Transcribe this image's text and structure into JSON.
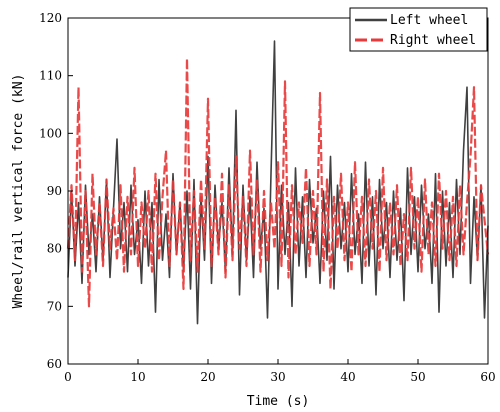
{
  "chart_data": {
    "type": "line",
    "xlabel": "Time (s)",
    "ylabel": "Wheel/rail vertical force (kN)",
    "xlim": [
      0,
      60
    ],
    "ylim": [
      60,
      120
    ],
    "xticks": [
      0,
      10,
      20,
      30,
      40,
      50,
      60
    ],
    "yticks": [
      60,
      70,
      80,
      90,
      100,
      110,
      120
    ],
    "grid": false,
    "legend_position": "top-right",
    "series": [
      {
        "name": "Left wheel",
        "color": "#404040",
        "style": "solid",
        "x": [
          0,
          0.5,
          1,
          1.5,
          2,
          2.5,
          3,
          3.5,
          4,
          4.5,
          5,
          5.5,
          6,
          6.5,
          7,
          7.5,
          8,
          8.5,
          9,
          9.5,
          10,
          10.5,
          11,
          11.5,
          12,
          12.5,
          13,
          13.5,
          14,
          14.5,
          15,
          15.5,
          16,
          16.5,
          17,
          17.5,
          18,
          18.5,
          19,
          19.5,
          20,
          20.5,
          21,
          21.5,
          22,
          22.5,
          23,
          23.5,
          24,
          24.5,
          25,
          25.5,
          26,
          26.5,
          27,
          27.5,
          28,
          28.5,
          29,
          29.5,
          30,
          30.5,
          31,
          31.5,
          32,
          32.5,
          33,
          33.5,
          34,
          34.5,
          35,
          35.5,
          36,
          36.5,
          37,
          37.5,
          38,
          38.5,
          39,
          39.5,
          40,
          40.5,
          41,
          41.5,
          42,
          42.5,
          43,
          43.5,
          44,
          44.5,
          45,
          45.5,
          46,
          46.5,
          47,
          47.5,
          48,
          48.5,
          49,
          49.5,
          50,
          50.5,
          51,
          51.5,
          52,
          52.5,
          53,
          53.5,
          54,
          54.5,
          55,
          55.5,
          56,
          56.5,
          57,
          57.5,
          58,
          58.5,
          59,
          59.5,
          60
        ],
        "values": [
          75,
          90,
          77,
          88,
          74,
          91,
          79,
          86,
          76,
          89,
          78,
          92,
          75,
          87,
          99,
          80,
          88,
          76,
          91,
          79,
          85,
          74,
          90,
          77,
          88,
          69,
          92,
          78,
          86,
          75,
          93,
          79,
          88,
          76,
          90,
          73,
          92,
          67,
          89,
          78,
          96,
          74,
          91,
          80,
          88,
          76,
          94,
          79,
          104,
          72,
          91,
          78,
          89,
          75,
          95,
          80,
          87,
          68,
          93,
          116,
          73,
          91,
          79,
          88,
          70,
          94,
          77,
          89,
          75,
          92,
          81,
          87,
          74,
          90,
          78,
          96,
          73,
          91,
          80,
          88,
          76,
          93,
          79,
          86,
          74,
          95,
          77,
          89,
          72,
          92,
          80,
          88,
          75,
          90,
          78,
          87,
          71,
          94,
          79,
          89,
          76,
          91,
          80,
          86,
          74,
          93,
          69,
          90,
          77,
          88,
          75,
          92,
          79,
          97,
          108,
          74,
          89,
          78,
          91,
          68,
          84
        ]
      },
      {
        "name": "Right wheel",
        "color": "#e83a3a",
        "style": "dashed",
        "x": [
          0,
          0.5,
          1,
          1.5,
          2,
          2.5,
          3,
          3.5,
          4,
          4.5,
          5,
          5.5,
          6,
          6.5,
          7,
          7.5,
          8,
          8.5,
          9,
          9.5,
          10,
          10.5,
          11,
          11.5,
          12,
          12.5,
          13,
          13.5,
          14,
          14.5,
          15,
          15.5,
          16,
          16.5,
          17,
          17.5,
          18,
          18.5,
          19,
          19.5,
          20,
          20.5,
          21,
          21.5,
          22,
          22.5,
          23,
          23.5,
          24,
          24.5,
          25,
          25.5,
          26,
          26.5,
          27,
          27.5,
          28,
          28.5,
          29,
          29.5,
          30,
          30.5,
          31,
          31.5,
          32,
          32.5,
          33,
          33.5,
          34,
          34.5,
          35,
          35.5,
          36,
          36.5,
          37,
          37.5,
          38,
          38.5,
          39,
          39.5,
          40,
          40.5,
          41,
          41.5,
          42,
          42.5,
          43,
          43.5,
          44,
          44.5,
          45,
          45.5,
          46,
          46.5,
          47,
          47.5,
          48,
          48.5,
          49,
          49.5,
          50,
          50.5,
          51,
          51.5,
          52,
          52.5,
          53,
          53.5,
          54,
          54.5,
          55,
          55.5,
          56,
          56.5,
          57,
          57.5,
          58,
          58.5,
          59,
          59.5,
          60
        ],
        "values": [
          80,
          91,
          78,
          108,
          76,
          90,
          70,
          93,
          79,
          88,
          77,
          92,
          80,
          87,
          78,
          91,
          76,
          89,
          79,
          94,
          77,
          88,
          80,
          90,
          76,
          93,
          78,
          89,
          97,
          77,
          92,
          79,
          88,
          73,
          113,
          78,
          90,
          76,
          92,
          80,
          106,
          77,
          89,
          79,
          93,
          75,
          91,
          78,
          96,
          80,
          89,
          77,
          97,
          79,
          92,
          76,
          90,
          78,
          88,
          80,
          95,
          77,
          109,
          75,
          91,
          79,
          88,
          81,
          94,
          77,
          90,
          79,
          107,
          76,
          92,
          73,
          89,
          80,
          93,
          78,
          88,
          76,
          95,
          79,
          89,
          77,
          92,
          80,
          90,
          76,
          94,
          78,
          88,
          79,
          91,
          77,
          86,
          78,
          94,
          80,
          89,
          76,
          92,
          79,
          88,
          77,
          93,
          80,
          90,
          78,
          89,
          77,
          91,
          79,
          88,
          96,
          108,
          78,
          91,
          85,
          79
        ]
      }
    ]
  }
}
